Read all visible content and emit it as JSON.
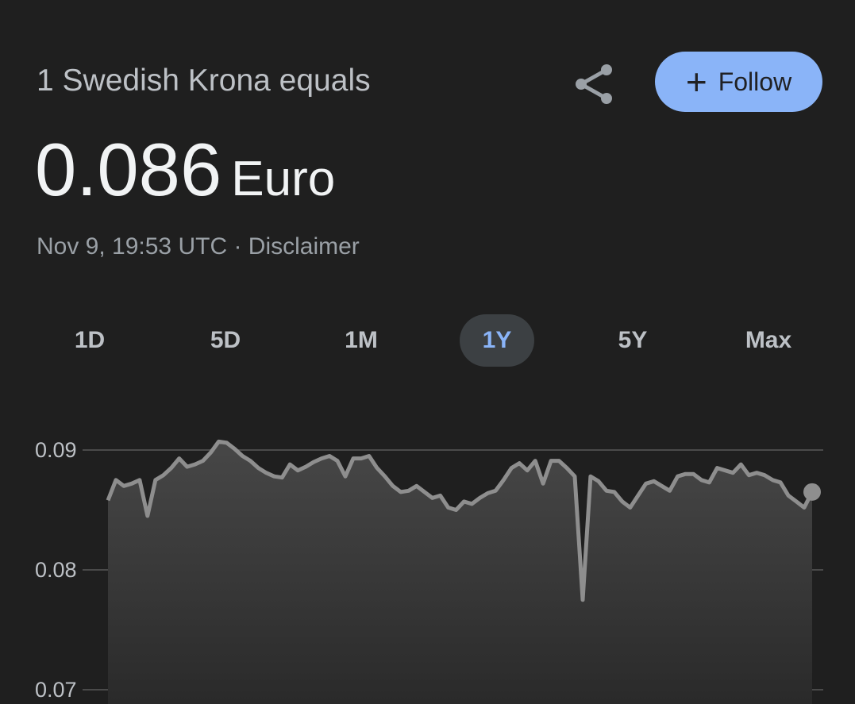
{
  "header": {
    "title": "1 Swedish Krona equals",
    "value": "0.086",
    "currency": "Euro",
    "timestamp": "Nov 9, 19:53 UTC",
    "separator": " · ",
    "disclaimer": "Disclaimer",
    "follow_label": "Follow",
    "share_icon": "share-icon",
    "follow_icon": "plus-icon"
  },
  "colors": {
    "background": "#1f1f1f",
    "accent": "#8ab4f8",
    "line": "#8e8e8e",
    "selected_tab_bg": "#3c4043"
  },
  "tabs": [
    {
      "label": "1D"
    },
    {
      "label": "5D"
    },
    {
      "label": "1M"
    },
    {
      "label": "1Y",
      "selected": true
    },
    {
      "label": "5Y"
    },
    {
      "label": "Max"
    }
  ],
  "chart_data": {
    "type": "area",
    "yticks": [
      "0.09",
      "0.08",
      "0.07"
    ],
    "ytick_values": [
      0.09,
      0.08,
      0.07
    ],
    "ylim": [
      0.07,
      0.0915
    ],
    "grid": true,
    "values": [
      0.0858,
      0.0875,
      0.087,
      0.0872,
      0.0875,
      0.0845,
      0.0875,
      0.0879,
      0.0885,
      0.0893,
      0.0886,
      0.0888,
      0.0891,
      0.0898,
      0.0907,
      0.0906,
      0.0901,
      0.0895,
      0.0891,
      0.0885,
      0.0881,
      0.0878,
      0.0877,
      0.0888,
      0.0883,
      0.0886,
      0.089,
      0.0893,
      0.0895,
      0.0891,
      0.0878,
      0.0893,
      0.0893,
      0.0895,
      0.0885,
      0.0878,
      0.087,
      0.0865,
      0.0866,
      0.087,
      0.0865,
      0.086,
      0.0862,
      0.0852,
      0.085,
      0.0857,
      0.0855,
      0.086,
      0.0864,
      0.0866,
      0.0875,
      0.0885,
      0.0889,
      0.0883,
      0.0891,
      0.0872,
      0.0891,
      0.0891,
      0.0885,
      0.0878,
      0.0775,
      0.0878,
      0.0874,
      0.0866,
      0.0865,
      0.0857,
      0.0852,
      0.0862,
      0.0872,
      0.0874,
      0.087,
      0.0866,
      0.0878,
      0.088,
      0.088,
      0.0875,
      0.0873,
      0.0885,
      0.0883,
      0.0881,
      0.0888,
      0.0879,
      0.0881,
      0.0879,
      0.0875,
      0.0873,
      0.0862,
      0.0857,
      0.0852,
      0.0865
    ]
  }
}
